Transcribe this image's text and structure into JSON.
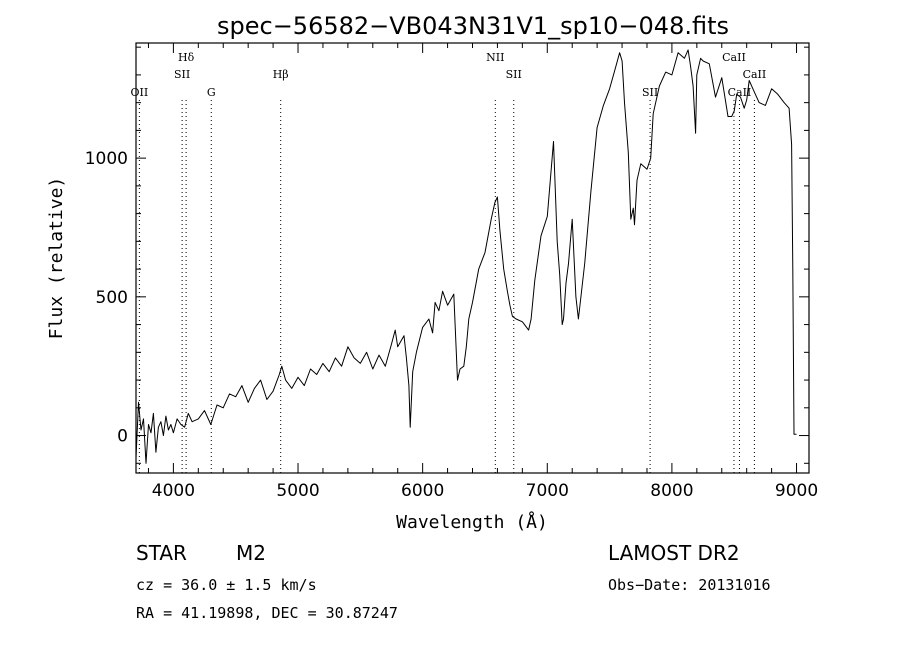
{
  "chart_data": {
    "type": "line",
    "title": "spec−56582−VB043N31V1_sp10−048.fits",
    "xlabel": "Wavelength (Å)",
    "ylabel": "Flux (relative)",
    "xlim": [
      3700,
      9100
    ],
    "ylim": [
      -135,
      1415
    ],
    "xticks": [
      4000,
      5000,
      6000,
      7000,
      8000,
      9000
    ],
    "yticks": [
      0,
      500,
      1000
    ],
    "x_minor_step": 200,
    "y_minor_step": 100,
    "line_color": "#000000",
    "spectrum": {
      "x": [
        3700,
        3720,
        3740,
        3760,
        3780,
        3800,
        3820,
        3840,
        3860,
        3880,
        3900,
        3920,
        3940,
        3960,
        3980,
        4000,
        4030,
        4060,
        4090,
        4120,
        4150,
        4200,
        4250,
        4300,
        4350,
        4400,
        4450,
        4500,
        4550,
        4600,
        4650,
        4700,
        4750,
        4800,
        4850,
        4870,
        4900,
        4950,
        5000,
        5050,
        5100,
        5150,
        5200,
        5250,
        5300,
        5350,
        5400,
        5450,
        5500,
        5550,
        5600,
        5650,
        5700,
        5750,
        5780,
        5800,
        5850,
        5870,
        5890,
        5900,
        5920,
        5950,
        6000,
        6050,
        6080,
        6100,
        6130,
        6160,
        6200,
        6250,
        6280,
        6300,
        6330,
        6350,
        6370,
        6400,
        6450,
        6500,
        6550,
        6580,
        6600,
        6620,
        6650,
        6680,
        6700,
        6720,
        6750,
        6800,
        6850,
        6870,
        6900,
        6950,
        7000,
        7050,
        7080,
        7100,
        7120,
        7130,
        7150,
        7170,
        7200,
        7230,
        7250,
        7300,
        7350,
        7400,
        7450,
        7500,
        7550,
        7580,
        7600,
        7620,
        7650,
        7670,
        7690,
        7700,
        7720,
        7750,
        7800,
        7830,
        7850,
        7900,
        7950,
        8000,
        8050,
        8100,
        8130,
        8150,
        8170,
        8190,
        8200,
        8230,
        8250,
        8300,
        8350,
        8400,
        8450,
        8480,
        8500,
        8520,
        8550,
        8580,
        8600,
        8620,
        8650,
        8700,
        8750,
        8800,
        8850,
        8900,
        8940,
        8960,
        8970,
        8980,
        9000
      ],
      "y": [
        -80,
        120,
        20,
        60,
        -100,
        40,
        10,
        80,
        -60,
        30,
        50,
        0,
        70,
        20,
        40,
        10,
        60,
        40,
        30,
        80,
        50,
        60,
        90,
        40,
        110,
        100,
        150,
        140,
        180,
        120,
        170,
        200,
        130,
        160,
        220,
        250,
        200,
        170,
        210,
        180,
        240,
        220,
        260,
        230,
        280,
        250,
        320,
        280,
        260,
        300,
        240,
        290,
        250,
        330,
        380,
        320,
        360,
        280,
        180,
        30,
        230,
        300,
        390,
        420,
        370,
        480,
        450,
        520,
        470,
        510,
        200,
        240,
        250,
        320,
        420,
        480,
        600,
        660,
        780,
        840,
        860,
        740,
        600,
        520,
        470,
        430,
        420,
        410,
        380,
        420,
        560,
        720,
        790,
        1060,
        700,
        580,
        400,
        420,
        550,
        620,
        780,
        500,
        420,
        620,
        880,
        1110,
        1190,
        1250,
        1330,
        1380,
        1350,
        1200,
        1020,
        780,
        820,
        760,
        920,
        980,
        960,
        1000,
        1160,
        1260,
        1310,
        1300,
        1380,
        1360,
        1390,
        1330,
        1260,
        1090,
        1300,
        1360,
        1350,
        1340,
        1220,
        1290,
        1150,
        1150,
        1170,
        1230,
        1220,
        1180,
        1210,
        1280,
        1250,
        1200,
        1190,
        1250,
        1230,
        1200,
        1180,
        1050,
        600,
        5,
        5
      ]
    },
    "line_markers": [
      {
        "name": "OII",
        "x": 3727,
        "label_row": 2
      },
      {
        "name": "Hδ",
        "x": 4102,
        "label_row": 0
      },
      {
        "name": "SII",
        "x": 4070,
        "label_row": 1
      },
      {
        "name": "G",
        "x": 4304,
        "label_row": 2
      },
      {
        "name": "Hβ",
        "x": 4861,
        "label_row": 1
      },
      {
        "name": "NII",
        "x": 6583,
        "label_row": 0
      },
      {
        "name": "SII",
        "x": 6731,
        "label_row": 1
      },
      {
        "name": "SII",
        "x": 7825,
        "label_row": 2
      },
      {
        "name": "CaII",
        "x": 8498,
        "label_row": 0
      },
      {
        "name": "CaII",
        "x": 8542,
        "label_row": 2
      },
      {
        "name": "CaII",
        "x": 8662,
        "label_row": 1
      }
    ]
  },
  "info": {
    "object_class": "STAR",
    "subclass": "M2",
    "survey": "LAMOST DR2",
    "redshift": "cz = 36.0 ± 1.5 km/s",
    "obs_date": "Obs−Date: 20131016",
    "coordinates": "RA =  41.19898, DEC =  30.87247"
  }
}
